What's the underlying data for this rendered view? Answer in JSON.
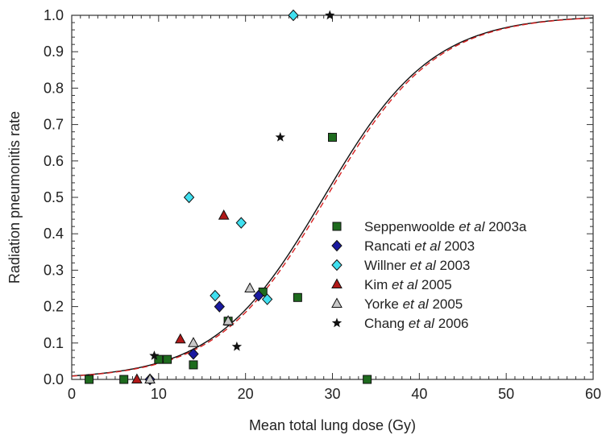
{
  "chart_data": {
    "type": "scatter",
    "xlabel": "Mean total lung dose (Gy)",
    "ylabel": "Radiation pneumonitis rate",
    "xlim": [
      0,
      60
    ],
    "ylim": [
      0,
      1.0
    ],
    "xticks": [
      0,
      10,
      20,
      30,
      40,
      50,
      60
    ],
    "yticks": [
      0.0,
      0.1,
      0.2,
      0.3,
      0.4,
      0.5,
      0.6,
      0.7,
      0.8,
      0.9,
      1.0
    ],
    "xtick_labels": [
      "0",
      "10",
      "20",
      "30",
      "40",
      "50",
      "60"
    ],
    "ytick_labels": [
      "0.0",
      "0.1",
      "0.2",
      "0.3",
      "0.4",
      "0.5",
      "0.6",
      "0.7",
      "0.8",
      "0.9",
      "1.0"
    ],
    "grid": false,
    "legend_position": "right",
    "series": [
      {
        "name_parts": [
          "Seppenwoolde ",
          "et al",
          " 2003a"
        ],
        "marker": "square",
        "color": "#1e6b1e",
        "points": [
          [
            2,
            0.0
          ],
          [
            6,
            0.0
          ],
          [
            10,
            0.055
          ],
          [
            11,
            0.055
          ],
          [
            14,
            0.04
          ],
          [
            18,
            0.16
          ],
          [
            22,
            0.24
          ],
          [
            26,
            0.225
          ],
          [
            30,
            0.665
          ],
          [
            34,
            0.0
          ]
        ]
      },
      {
        "name_parts": [
          "Rancati ",
          "et al",
          " 2003"
        ],
        "marker": "diamond",
        "color": "#1a1aa0",
        "points": [
          [
            9,
            0.0
          ],
          [
            14,
            0.07
          ],
          [
            17,
            0.2
          ],
          [
            21.5,
            0.23
          ]
        ]
      },
      {
        "name_parts": [
          "Willner ",
          "et al",
          " 2003"
        ],
        "marker": "diamond",
        "color": "#40e0f0",
        "points": [
          [
            13.5,
            0.5
          ],
          [
            16.5,
            0.23
          ],
          [
            19.5,
            0.43
          ],
          [
            22.5,
            0.22
          ],
          [
            25.5,
            1.0
          ]
        ]
      },
      {
        "name_parts": [
          "Kim ",
          "et al",
          " 2005"
        ],
        "marker": "triangle",
        "color": "#b01818",
        "points": [
          [
            7.5,
            0.0
          ],
          [
            12.5,
            0.11
          ],
          [
            17.5,
            0.45
          ]
        ]
      },
      {
        "name_parts": [
          "Yorke ",
          "et al",
          " 2005"
        ],
        "marker": "triangle",
        "color": "#c8c8c8",
        "points": [
          [
            9,
            0.0
          ],
          [
            14,
            0.1
          ],
          [
            18,
            0.16
          ],
          [
            20.5,
            0.25
          ]
        ]
      },
      {
        "name_parts": [
          "Chang ",
          "et al",
          " 2006"
        ],
        "marker": "star",
        "color": "#111111",
        "points": [
          [
            9.5,
            0.065
          ],
          [
            19,
            0.09
          ],
          [
            24,
            0.665
          ],
          [
            29.7,
            1.0
          ]
        ]
      }
    ],
    "curves": [
      {
        "style": "solid",
        "color": "#111111",
        "model": "logistic",
        "td50": 29.0,
        "steepness": 0.16
      },
      {
        "style": "dashed",
        "color": "#d62020",
        "model": "logistic",
        "td50": 29.3,
        "steepness": 0.16
      }
    ]
  }
}
